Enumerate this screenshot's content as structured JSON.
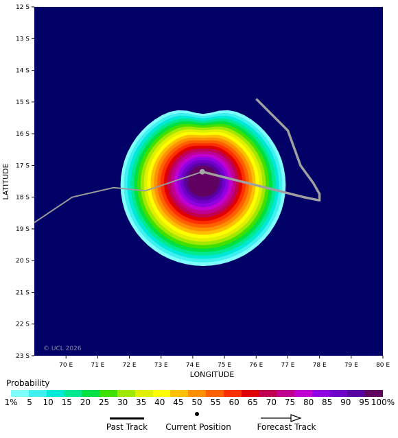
{
  "map": {
    "longitudes": [
      70,
      71,
      72,
      73,
      74,
      75,
      76,
      77,
      78,
      79,
      80
    ],
    "latitudes": [
      12,
      13,
      14,
      15,
      16,
      17,
      18,
      19,
      20,
      21,
      22,
      23
    ],
    "lon_suffix": "E",
    "lat_suffix": "S",
    "lon_range": [
      69,
      80
    ],
    "lat_range": [
      12,
      23
    ],
    "xlabel": "LONGITUDE",
    "ylabel": "LATITUDE",
    "copyright": "© UCL 2026",
    "ocean_color": "#000066",
    "current_position": [
      74.3,
      17.2
    ],
    "past_track": [
      [
        76.0,
        14.9
      ],
      [
        77.0,
        15.9
      ],
      [
        77.4,
        17.0
      ],
      [
        77.8,
        17.55
      ],
      [
        78.0,
        17.9
      ],
      [
        78.0,
        18.1
      ],
      [
        77.5,
        18.0
      ],
      [
        74.3,
        17.2
      ]
    ],
    "forecast_track": [
      [
        69.0,
        18.8
      ],
      [
        70.2,
        18.0
      ],
      [
        71.5,
        17.7
      ],
      [
        72.5,
        17.8
      ],
      [
        74.3,
        17.2
      ]
    ]
  },
  "legend": {
    "title": "Probability",
    "labels": [
      "1%",
      "5",
      "10",
      "15",
      "20",
      "25",
      "30",
      "35",
      "40",
      "45",
      "50",
      "55",
      "60",
      "65",
      "70",
      "75",
      "80",
      "85",
      "90",
      "95",
      "100%"
    ],
    "colors": [
      "#80ffff",
      "#40f0f0",
      "#00e8d8",
      "#00e890",
      "#00e040",
      "#40e000",
      "#a0e800",
      "#e0f000",
      "#ffff00",
      "#ffc000",
      "#ff9000",
      "#ff6000",
      "#ff3000",
      "#e00000",
      "#c00050",
      "#c00090",
      "#c000d0",
      "#9000e0",
      "#7000c8",
      "#5800a0",
      "#600060"
    ]
  },
  "key": {
    "past_label": "Past Track",
    "current_label": "Current Position",
    "forecast_label": "Forecast Track"
  }
}
